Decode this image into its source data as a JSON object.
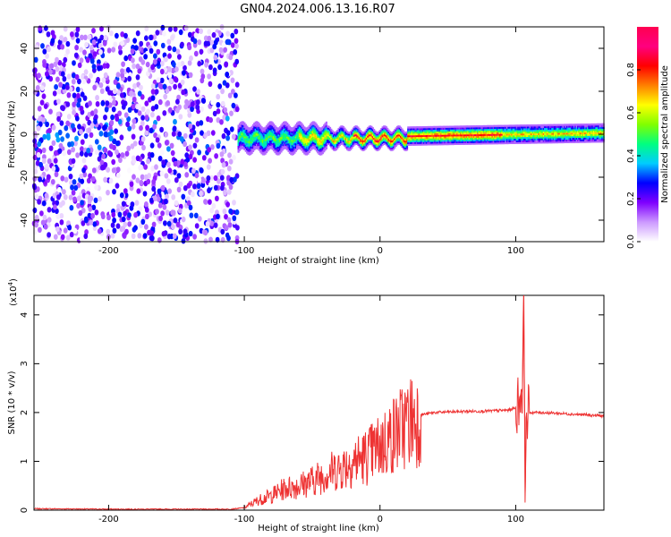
{
  "title": "GN04.2024.006.13.16.R07",
  "chart_data": [
    {
      "type": "heatmap",
      "xlabel": "Height of straight line (km)",
      "ylabel": "Frequency (Hz)",
      "xlim": [
        -255,
        165
      ],
      "ylim": [
        -50,
        50
      ],
      "xticks": [
        -200,
        -100,
        0,
        100
      ],
      "yticks": [
        -40,
        -20,
        0,
        20,
        40
      ],
      "colorbar": {
        "label": "Normalized spectral amplitude",
        "range": [
          0,
          1
        ],
        "ticks": [
          0.0,
          0.2,
          0.4,
          0.6,
          0.8
        ],
        "colormap": [
          "#ffffff",
          "#cc99ff",
          "#7f00ff",
          "#0000ff",
          "#00ccff",
          "#00ff80",
          "#80ff00",
          "#ffff00",
          "#ff8000",
          "#ff0000",
          "#ff0080",
          "#ff0050"
        ]
      },
      "regions": [
        {
          "x_range": [
            -255,
            -105
          ],
          "freq_range": [
            -50,
            50
          ],
          "amplitude": "noise 0.0-0.3"
        },
        {
          "x_range": [
            -105,
            165
          ],
          "freq_center": 0,
          "freq_halfwidth": 3,
          "amplitude": "0.3-0.9, peak near -20 to 80"
        }
      ]
    },
    {
      "type": "line",
      "xlabel": "Height of straight line (km)",
      "ylabel": "SNR (10 * v/v)",
      "yscale_label": "(x10",
      "yscale_exponent": "4",
      "xlim": [
        -255,
        165
      ],
      "ylim": [
        0,
        4.4
      ],
      "xticks": [
        -200,
        -100,
        0,
        100
      ],
      "yticks": [
        0,
        1,
        2,
        3,
        4
      ],
      "color": "#ee3333",
      "x": [
        -255,
        -200,
        -150,
        -110,
        -100,
        -90,
        -80,
        -70,
        -60,
        -50,
        -40,
        -30,
        -20,
        -10,
        0,
        10,
        20,
        30,
        40,
        60,
        80,
        95,
        100,
        103,
        105,
        106,
        107,
        108,
        110,
        120,
        140,
        165
      ],
      "y": [
        0.03,
        0.02,
        0.02,
        0.02,
        0.05,
        0.2,
        0.3,
        0.45,
        0.5,
        0.6,
        0.75,
        0.85,
        1.0,
        1.1,
        1.3,
        1.55,
        1.8,
        1.95,
        2.0,
        2.02,
        2.03,
        2.05,
        2.1,
        2.3,
        2.5,
        4.4,
        0.35,
        2.0,
        2.0,
        2.0,
        1.97,
        1.93
      ]
    }
  ]
}
